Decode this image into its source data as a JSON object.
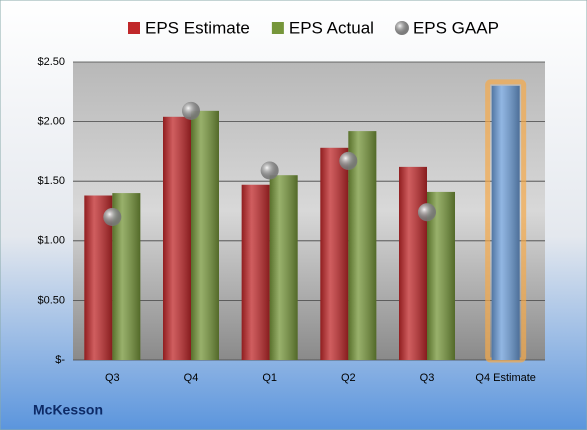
{
  "chart_data": {
    "type": "bar",
    "title": "McKesson",
    "categories": [
      "Q3",
      "Q4",
      "Q1",
      "Q2",
      "Q3",
      "Q4 Estimate"
    ],
    "series": [
      {
        "name": "EPS Estimate",
        "color": "#c0282a",
        "values": [
          1.38,
          2.04,
          1.47,
          1.78,
          1.62,
          2.3
        ]
      },
      {
        "name": "EPS Actual",
        "color": "#76963a",
        "values": [
          1.4,
          2.09,
          1.55,
          1.92,
          1.41,
          null
        ]
      },
      {
        "name": "EPS GAAP",
        "color": "#a8a8a8",
        "marker": "sphere",
        "values": [
          1.2,
          2.09,
          1.59,
          1.67,
          1.24,
          null
        ]
      }
    ],
    "highlight": {
      "series": 0,
      "index": 5,
      "color": "#6d9ed9",
      "glow": "#f5a94a"
    },
    "ylim": [
      0,
      2.5
    ],
    "yticks": [
      {
        "value": 0,
        "label": "$-"
      },
      {
        "value": 0.5,
        "label": "$0.50"
      },
      {
        "value": 1,
        "label": "$1.00"
      },
      {
        "value": 1.5,
        "label": "$1.50"
      },
      {
        "value": 2,
        "label": "$2.00"
      },
      {
        "value": 2.5,
        "label": "$2.50"
      }
    ],
    "grid": true
  }
}
